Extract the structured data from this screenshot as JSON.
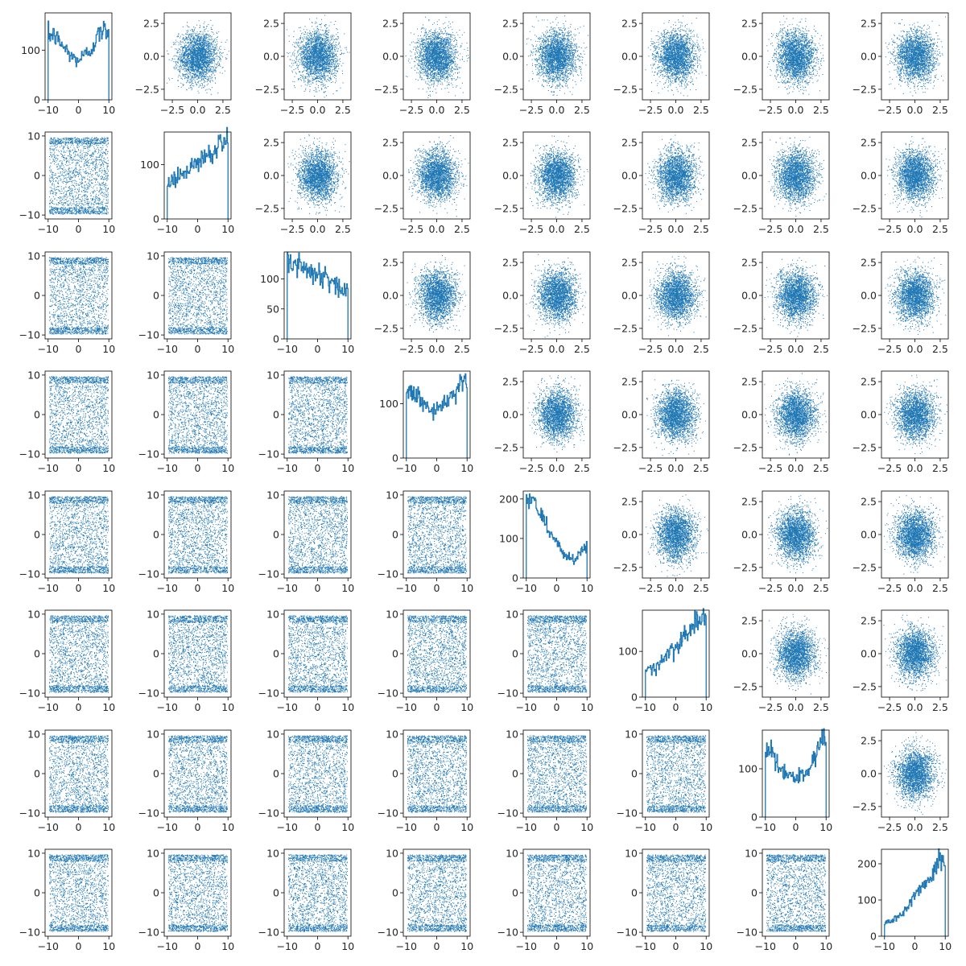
{
  "chart_data": {
    "type": "corner-plot",
    "description_kind": "8x8 pairwise grid: histograms on the diagonal, scatter plots off-diagonal",
    "n_dims": 8,
    "color": "#1f77b4",
    "latent_axis": {
      "range": [
        -3.3,
        3.3
      ],
      "ticks": [
        -2.5,
        0.0,
        2.5
      ],
      "tick_labels": [
        "−2.5",
        "0.0",
        "2.5"
      ]
    },
    "uniform_axis": {
      "range": [
        -11,
        11
      ],
      "ticks": [
        -10,
        0,
        10
      ],
      "tick_labels": [
        "−10",
        "0",
        "10"
      ]
    },
    "lower_triangle": {
      "x_range": [
        -11,
        11
      ],
      "y_range": [
        -11,
        11
      ],
      "distribution": "roughly uniform on [-10, 10] in both coordinates"
    },
    "upper_triangle": {
      "x_range": [
        -3.3,
        3.3
      ],
      "y_range": [
        -3.3,
        3.3
      ],
      "distribution": "roughly standard normal blob"
    },
    "diagonal": [
      {
        "index": 0,
        "x": [
          -10,
          -8,
          -6,
          -4,
          -2,
          0,
          2,
          4,
          6,
          8,
          10
        ],
        "counts": [
          0,
          130,
          115,
          100,
          85,
          80,
          90,
          100,
          125,
          140,
          0
        ],
        "ylim": [
          0,
          175
        ],
        "yticks": [
          0,
          100
        ],
        "ytick_labels": [
          "0",
          "100"
        ]
      },
      {
        "index": 1,
        "x": [
          -10,
          -8,
          -6,
          -4,
          -2,
          0,
          2,
          4,
          6,
          8,
          10
        ],
        "counts": [
          0,
          70,
          78,
          88,
          95,
          105,
          115,
          120,
          130,
          145,
          0
        ],
        "ylim": [
          0,
          160
        ],
        "yticks": [
          0,
          100
        ],
        "ytick_labels": [
          "0",
          "100"
        ]
      },
      {
        "index": 2,
        "x": [
          -10,
          -8,
          -6,
          -4,
          -2,
          0,
          2,
          4,
          6,
          8,
          10
        ],
        "counts": [
          0,
          125,
          125,
          115,
          110,
          105,
          100,
          95,
          90,
          80,
          0
        ],
        "ylim": [
          0,
          145
        ],
        "yticks": [
          0,
          50,
          100
        ],
        "ytick_labels": [
          "0",
          "50",
          "100"
        ]
      },
      {
        "index": 3,
        "x": [
          -10,
          -8,
          -6,
          -4,
          -2,
          0,
          2,
          4,
          6,
          8,
          10
        ],
        "counts": [
          0,
          120,
          110,
          100,
          90,
          88,
          95,
          105,
          120,
          140,
          0
        ],
        "ylim": [
          0,
          160
        ],
        "yticks": [
          0,
          100
        ],
        "ytick_labels": [
          "0",
          "100"
        ]
      },
      {
        "index": 4,
        "x": [
          -10,
          -8,
          -6,
          -4,
          -2,
          0,
          2,
          4,
          6,
          8,
          10
        ],
        "counts": [
          0,
          200,
          170,
          145,
          115,
          90,
          70,
          50,
          40,
          80,
          0
        ],
        "ylim": [
          0,
          220
        ],
        "yticks": [
          0,
          100,
          200
        ],
        "ytick_labels": [
          "0",
          "100",
          "200"
        ]
      },
      {
        "index": 5,
        "x": [
          -10,
          -8,
          -6,
          -4,
          -2,
          0,
          2,
          4,
          6,
          8,
          10
        ],
        "counts": [
          0,
          60,
          70,
          80,
          95,
          110,
          125,
          140,
          160,
          170,
          0
        ],
        "ylim": [
          0,
          190
        ],
        "yticks": [
          0,
          100
        ],
        "ytick_labels": [
          "0",
          "100"
        ]
      },
      {
        "index": 6,
        "x": [
          -10,
          -8,
          -6,
          -4,
          -2,
          0,
          2,
          4,
          6,
          8,
          10
        ],
        "counts": [
          0,
          135,
          115,
          95,
          85,
          80,
          90,
          100,
          120,
          160,
          0
        ],
        "ylim": [
          0,
          180
        ],
        "yticks": [
          0,
          100
        ],
        "ytick_labels": [
          "0",
          "100"
        ]
      },
      {
        "index": 7,
        "x": [
          -10,
          -8,
          -6,
          -4,
          -2,
          0,
          2,
          4,
          6,
          8,
          10
        ],
        "counts": [
          0,
          40,
          50,
          65,
          90,
          115,
          140,
          150,
          170,
          210,
          0
        ],
        "ylim": [
          0,
          240
        ],
        "yticks": [
          0,
          100,
          200
        ],
        "ytick_labels": [
          "0",
          "100",
          "200"
        ]
      }
    ]
  }
}
